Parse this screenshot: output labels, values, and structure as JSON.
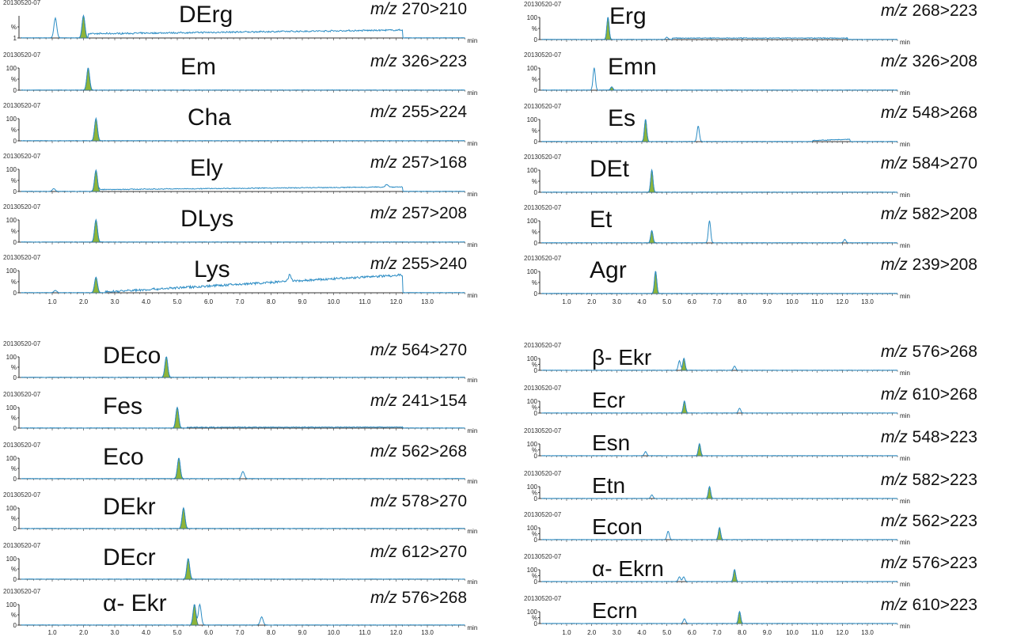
{
  "colors": {
    "trace": "#2b8cc4",
    "highlight_fill": "#8db43a",
    "axis": "#333333"
  },
  "chart_data": [
    {
      "type": "line",
      "quadrant": "top-left",
      "x_axis": {
        "ticks": [
          "1.0",
          "2.0",
          "3.0",
          "4.0",
          "5.0",
          "6.0",
          "7.0",
          "8.0",
          "9.0",
          "10.0",
          "11.0",
          "12.0",
          "13.0"
        ],
        "unit": "min",
        "range": [
          0,
          14.2
        ]
      },
      "panels": [
        {
          "sample": "20130520-07",
          "compound": "DErg",
          "mz": "m/z",
          "transition": "270>210",
          "y_ticks": [
            "",
            "%",
            "1"
          ],
          "peaks": [
            {
              "rt": 1.1,
              "rel": 90,
              "highlighted": false
            },
            {
              "rt": 2.0,
              "rel": 100,
              "highlighted": true
            }
          ],
          "background": [
            {
              "from": 2.15,
              "to": 12.2,
              "start": 18,
              "end": 35
            }
          ]
        },
        {
          "sample": "20130520-07",
          "compound": "Em",
          "mz": "m/z",
          "transition": "326>223",
          "y_ticks": [
            "100",
            "%",
            "0"
          ],
          "peaks": [
            {
              "rt": 2.15,
              "rel": 100,
              "highlighted": true
            }
          ],
          "background": []
        },
        {
          "sample": "20130520-07",
          "compound": "Cha",
          "mz": "m/z",
          "transition": "255>224",
          "y_ticks": [
            "100",
            "%",
            "0"
          ],
          "peaks": [
            {
              "rt": 2.4,
              "rel": 100,
              "highlighted": true
            }
          ],
          "background": []
        },
        {
          "sample": "20130520-07",
          "compound": "Ely",
          "mz": "m/z",
          "transition": "257>168",
          "y_ticks": [
            "100",
            "%",
            "0"
          ],
          "peaks": [
            {
              "rt": 1.05,
              "rel": 12,
              "highlighted": false
            },
            {
              "rt": 2.4,
              "rel": 95,
              "highlighted": true
            },
            {
              "rt": 11.7,
              "rel": 12,
              "highlighted": false
            }
          ],
          "background": [
            {
              "from": 2.5,
              "to": 12.2,
              "start": 8,
              "end": 20
            }
          ]
        },
        {
          "sample": "20130520-07",
          "compound": "DLys",
          "mz": "m/z",
          "transition": "257>208",
          "y_ticks": [
            "100",
            "%",
            "0"
          ],
          "peaks": [
            {
              "rt": 2.4,
              "rel": 100,
              "highlighted": true
            }
          ],
          "background": []
        },
        {
          "sample": "20130520-07",
          "compound": "Lys",
          "mz": "m/z",
          "transition": "255>240",
          "y_ticks": [
            "100",
            "%",
            "0"
          ],
          "peaks": [
            {
              "rt": 1.1,
              "rel": 10,
              "highlighted": false
            },
            {
              "rt": 2.4,
              "rel": 70,
              "highlighted": true
            },
            {
              "rt": 8.6,
              "rel": 30,
              "highlighted": false
            }
          ],
          "background": [
            {
              "from": 2.7,
              "to": 12.2,
              "start": 3,
              "end": 80
            }
          ]
        }
      ]
    },
    {
      "type": "line",
      "quadrant": "top-right",
      "x_axis": {
        "ticks": [
          "1.0",
          "2.0",
          "3.0",
          "4.0",
          "5.0",
          "6.0",
          "7.0",
          "8.0",
          "9.0",
          "10.0",
          "11.0",
          "12.0",
          "13.0"
        ],
        "unit": "min",
        "range": [
          0,
          14.2
        ]
      },
      "panels": [
        {
          "sample": "20130520-07",
          "compound": "Erg",
          "mz": "m/z",
          "transition": "268>223",
          "y_ticks": [
            "100",
            "%",
            "0"
          ],
          "peaks": [
            {
              "rt": 2.65,
              "rel": 100,
              "highlighted": true
            },
            {
              "rt": 5.0,
              "rel": 10,
              "highlighted": false
            }
          ],
          "background": [
            {
              "from": 5.2,
              "to": 12.2,
              "start": 6,
              "end": 6
            }
          ]
        },
        {
          "sample": "20130520-07",
          "compound": "Emn",
          "mz": "m/z",
          "transition": "326>208",
          "y_ticks": [
            "100",
            "%",
            "0"
          ],
          "peaks": [
            {
              "rt": 2.1,
              "rel": 100,
              "highlighted": false
            },
            {
              "rt": 2.8,
              "rel": 15,
              "highlighted": true
            }
          ],
          "background": []
        },
        {
          "sample": "20130520-07",
          "compound": "Es",
          "mz": "m/z",
          "transition": "548>268",
          "y_ticks": [
            "100",
            "%",
            "0"
          ],
          "peaks": [
            {
              "rt": 4.15,
              "rel": 100,
              "highlighted": true
            },
            {
              "rt": 6.25,
              "rel": 70,
              "highlighted": false
            }
          ],
          "background": [
            {
              "from": 10.8,
              "to": 12.3,
              "start": 4,
              "end": 10
            }
          ]
        },
        {
          "sample": "20130520-07",
          "compound": "DEt",
          "mz": "m/z",
          "transition": "584>270",
          "y_ticks": [
            "100",
            "%",
            "0"
          ],
          "peaks": [
            {
              "rt": 4.4,
              "rel": 100,
              "highlighted": true
            }
          ],
          "background": []
        },
        {
          "sample": "20130520-07",
          "compound": "Et",
          "mz": "m/z",
          "transition": "582>208",
          "y_ticks": [
            "100",
            "%",
            "0"
          ],
          "peaks": [
            {
              "rt": 4.4,
              "rel": 55,
              "highlighted": true
            },
            {
              "rt": 6.7,
              "rel": 100,
              "highlighted": false
            },
            {
              "rt": 12.1,
              "rel": 15,
              "highlighted": false
            }
          ],
          "background": []
        },
        {
          "sample": "20130520-07",
          "compound": "Agr",
          "mz": "m/z",
          "transition": "239>208",
          "y_ticks": [
            "100",
            "%",
            "0"
          ],
          "peaks": [
            {
              "rt": 4.55,
              "rel": 100,
              "highlighted": true
            }
          ],
          "background": []
        }
      ]
    },
    {
      "type": "line",
      "quadrant": "bottom-left",
      "x_axis": {
        "ticks": [
          "1.0",
          "2.0",
          "3.0",
          "4.0",
          "5.0",
          "6.0",
          "7.0",
          "8.0",
          "9.0",
          "10.0",
          "11.0",
          "12.0",
          "13.0"
        ],
        "unit": "min",
        "range": [
          0,
          14.2
        ]
      },
      "panels": [
        {
          "sample": "20130520-07",
          "compound": "DEco",
          "mz": "m/z",
          "transition": "564>270",
          "y_ticks": [
            "100",
            "%",
            "0"
          ],
          "peaks": [
            {
              "rt": 4.65,
              "rel": 100,
              "highlighted": true
            }
          ],
          "background": []
        },
        {
          "sample": "20130520-07",
          "compound": "Fes",
          "mz": "m/z",
          "transition": "241>154",
          "y_ticks": [
            "100",
            "%",
            "0"
          ],
          "peaks": [
            {
              "rt": 5.0,
              "rel": 100,
              "highlighted": true
            }
          ],
          "background": [
            {
              "from": 5.3,
              "to": 12.2,
              "start": 3,
              "end": 4
            }
          ]
        },
        {
          "sample": "20130520-07",
          "compound": "Eco",
          "mz": "m/z",
          "transition": "562>268",
          "y_ticks": [
            "100",
            "%",
            "0"
          ],
          "peaks": [
            {
              "rt": 5.05,
              "rel": 100,
              "highlighted": true
            },
            {
              "rt": 7.1,
              "rel": 35,
              "highlighted": false
            }
          ],
          "background": []
        },
        {
          "sample": "20130520-07",
          "compound": "DEkr",
          "mz": "m/z",
          "transition": "578>270",
          "y_ticks": [
            "100",
            "%",
            "0"
          ],
          "peaks": [
            {
              "rt": 5.2,
              "rel": 100,
              "highlighted": true
            }
          ],
          "background": []
        },
        {
          "sample": "20130520-07",
          "compound": "DEcr",
          "mz": "m/z",
          "transition": "612>270",
          "y_ticks": [
            "100",
            "%",
            "0"
          ],
          "peaks": [
            {
              "rt": 5.35,
              "rel": 100,
              "highlighted": true
            }
          ],
          "background": []
        },
        {
          "sample": "20130520-07",
          "compound": "α- Ekr",
          "mz": "m/z",
          "transition": "576>268",
          "y_ticks": [
            "100",
            "%",
            "0"
          ],
          "peaks": [
            {
              "rt": 5.55,
              "rel": 100,
              "highlighted": true
            },
            {
              "rt": 5.72,
              "rel": 100,
              "highlighted": false
            },
            {
              "rt": 7.7,
              "rel": 40,
              "highlighted": false
            }
          ],
          "background": []
        }
      ]
    },
    {
      "type": "line",
      "quadrant": "bottom-right",
      "x_axis": {
        "ticks": [
          "1.0",
          "2.0",
          "3.0",
          "4.0",
          "5.0",
          "6.0",
          "7.0",
          "8.0",
          "9.0",
          "10.0",
          "11.0",
          "12.0",
          "13.0"
        ],
        "unit": "min",
        "range": [
          0,
          14.2
        ]
      },
      "panels": [
        {
          "sample": "20130520-07",
          "compound": "β- Ekr",
          "mz": "m/z",
          "transition": "576>268",
          "y_ticks": [
            "100",
            "%",
            "0"
          ],
          "peaks": [
            {
              "rt": 5.5,
              "rel": 80,
              "highlighted": false
            },
            {
              "rt": 5.68,
              "rel": 100,
              "highlighted": true
            },
            {
              "rt": 7.7,
              "rel": 35,
              "highlighted": false
            }
          ],
          "background": []
        },
        {
          "sample": "20130520-07",
          "compound": "Ecr",
          "mz": "m/z",
          "transition": "610>268",
          "y_ticks": [
            "100",
            "%",
            "0"
          ],
          "peaks": [
            {
              "rt": 5.7,
              "rel": 100,
              "highlighted": true
            },
            {
              "rt": 7.9,
              "rel": 40,
              "highlighted": false
            }
          ],
          "background": []
        },
        {
          "sample": "20130520-07",
          "compound": "Esn",
          "mz": "m/z",
          "transition": "548>223",
          "y_ticks": [
            "100",
            "%",
            "0"
          ],
          "peaks": [
            {
              "rt": 4.15,
              "rel": 35,
              "highlighted": false
            },
            {
              "rt": 6.3,
              "rel": 100,
              "highlighted": true
            }
          ],
          "background": []
        },
        {
          "sample": "20130520-07",
          "compound": "Etn",
          "mz": "m/z",
          "transition": "582>223",
          "y_ticks": [
            "100",
            "%",
            "0"
          ],
          "peaks": [
            {
              "rt": 4.4,
              "rel": 30,
              "highlighted": false
            },
            {
              "rt": 6.7,
              "rel": 100,
              "highlighted": true
            }
          ],
          "background": []
        },
        {
          "sample": "20130520-07",
          "compound": "Econ",
          "mz": "m/z",
          "transition": "562>223",
          "y_ticks": [
            "100",
            "%",
            "0"
          ],
          "peaks": [
            {
              "rt": 5.05,
              "rel": 70,
              "highlighted": false
            },
            {
              "rt": 7.1,
              "rel": 100,
              "highlighted": true
            }
          ],
          "background": []
        },
        {
          "sample": "20130520-07",
          "compound": "α- Ekrn",
          "mz": "m/z",
          "transition": "576>223",
          "y_ticks": [
            "100",
            "%",
            "0"
          ],
          "peaks": [
            {
              "rt": 5.5,
              "rel": 40,
              "highlighted": false
            },
            {
              "rt": 5.67,
              "rel": 40,
              "highlighted": false
            },
            {
              "rt": 7.7,
              "rel": 100,
              "highlighted": true
            }
          ],
          "background": []
        },
        {
          "sample": "20130520-07",
          "compound": "Ecrn",
          "mz": "m/z",
          "transition": "610>223",
          "y_ticks": [
            "100",
            "%",
            "0"
          ],
          "peaks": [
            {
              "rt": 5.7,
              "rel": 40,
              "highlighted": false
            },
            {
              "rt": 7.9,
              "rel": 100,
              "highlighted": true
            }
          ],
          "background": []
        }
      ]
    }
  ]
}
